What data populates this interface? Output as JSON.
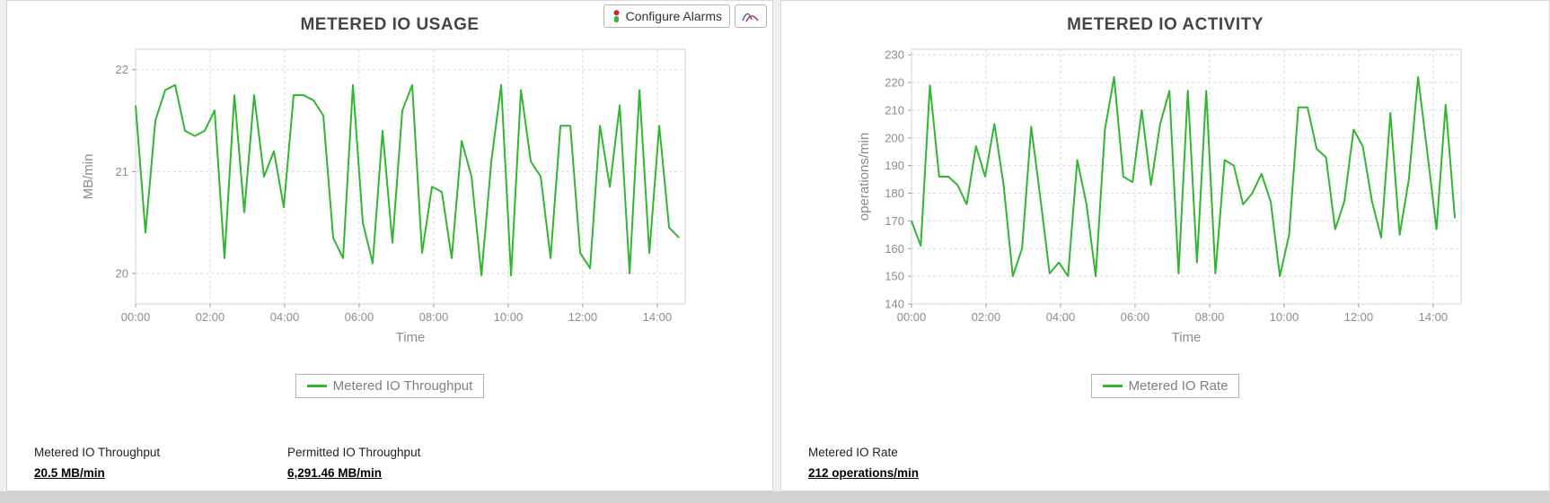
{
  "toolbar": {
    "configure_alarms_label": "Configure Alarms"
  },
  "panels": {
    "usage": {
      "title": "METERED IO USAGE",
      "legend": "Metered IO Throughput",
      "stats": [
        {
          "label": "Metered IO Throughput",
          "value": "20.5 MB/min"
        },
        {
          "label": "Permitted IO Throughput",
          "value": "6,291.46 MB/min"
        }
      ]
    },
    "activity": {
      "title": "METERED IO ACTIVITY",
      "legend": "Metered IO Rate",
      "stats": [
        {
          "label": "Metered IO Rate",
          "value": "212 operations/min"
        }
      ]
    }
  },
  "colors": {
    "line_green": "#33b533",
    "grid": "#d9d9d9",
    "axis_text": "#8c8c8c",
    "title_text": "#454545",
    "plot_border": "#cfcfcf"
  },
  "chart_data": [
    {
      "type": "line",
      "title": "METERED IO USAGE",
      "xlabel": "Time",
      "ylabel": "MB/min",
      "ylim": [
        19.7,
        22.2
      ],
      "yticks": [
        20,
        21,
        22
      ],
      "xticks": [
        "00:00",
        "02:00",
        "04:00",
        "06:00",
        "08:00",
        "10:00",
        "12:00",
        "14:00"
      ],
      "x_tick_step": 120,
      "x_domain": 885,
      "x_data_max": 875,
      "grid": true,
      "legend_position": "bottom",
      "series": [
        {
          "name": "Metered IO Throughput",
          "color": "#33b533",
          "values": [
            21.65,
            20.4,
            21.5,
            21.8,
            21.85,
            21.4,
            21.35,
            21.4,
            21.6,
            20.15,
            21.75,
            20.6,
            21.75,
            20.95,
            21.2,
            20.65,
            21.75,
            21.75,
            21.7,
            21.55,
            20.35,
            20.15,
            21.85,
            20.5,
            20.1,
            21.4,
            20.3,
            21.6,
            21.85,
            20.2,
            20.85,
            20.8,
            20.15,
            21.3,
            20.95,
            19.98,
            21.1,
            21.85,
            19.98,
            21.8,
            21.1,
            20.95,
            20.15,
            21.45,
            21.45,
            20.2,
            20.05,
            21.45,
            20.85,
            21.65,
            20.0,
            21.8,
            20.2,
            21.45,
            20.45,
            20.35
          ]
        }
      ]
    },
    {
      "type": "line",
      "title": "METERED IO ACTIVITY",
      "xlabel": "Time",
      "ylabel": "operations/min",
      "ylim": [
        140,
        232
      ],
      "yticks": [
        140,
        150,
        160,
        170,
        180,
        190,
        200,
        210,
        220,
        230
      ],
      "xticks": [
        "00:00",
        "02:00",
        "04:00",
        "06:00",
        "08:00",
        "10:00",
        "12:00",
        "14:00"
      ],
      "x_tick_step": 120,
      "x_domain": 885,
      "x_data_max": 875,
      "grid": true,
      "legend_position": "bottom",
      "series": [
        {
          "name": "Metered IO Rate",
          "color": "#33b533",
          "values": [
            170,
            161,
            219,
            186,
            186,
            183,
            176,
            197,
            186,
            205,
            183,
            150,
            160,
            204,
            178,
            151,
            155,
            150,
            192,
            176,
            150,
            203,
            222,
            186,
            184,
            210,
            183,
            205,
            217,
            151,
            217,
            155,
            217,
            151,
            192,
            190,
            176,
            180,
            187,
            177,
            150,
            165,
            211,
            211,
            196,
            193,
            167,
            177,
            203,
            197,
            177,
            164,
            209,
            165,
            185,
            222,
            195,
            167,
            212,
            171
          ]
        }
      ]
    }
  ]
}
